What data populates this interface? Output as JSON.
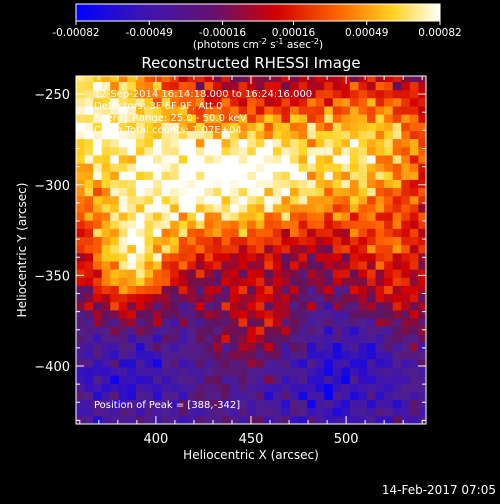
{
  "colorbar": {
    "ticks": [
      "-0.00082",
      "-0.00049",
      "-0.00016",
      "0.00016",
      "0.00049",
      "0.00082"
    ],
    "units_main": "(photons cm",
    "units_exp1": "-2",
    "units_mid": " s",
    "units_exp2": "-1",
    "units_mid2": " asec",
    "units_exp3": "-2",
    "units_end": ")"
  },
  "title": "Reconstructed RHESSI Image",
  "annotations": {
    "time_range": "12-Sep-2014 16:14:18.000 to 16:24:16.000",
    "detectors": "Detectors: 3F 6F 9F, Att 0",
    "energy": "Energy Range: 25.0 - 50.0 keV",
    "clean": "Clean    Total counts: 1.07E+04",
    "peak": "Position of Peak = [388,-342]"
  },
  "footer": {
    "date": "14-Feb-2017 07:05"
  },
  "chart_data": {
    "type": "heatmap",
    "title": "Reconstructed RHESSI Image",
    "xlabel": "Heliocentric X (arcsec)",
    "ylabel": "Heliocentric Y (arcsec)",
    "xlim": [
      358,
      542
    ],
    "ylim": [
      -432,
      -240
    ],
    "x_ticks": [
      400,
      450,
      500
    ],
    "y_ticks": [
      -250,
      -300,
      -350,
      -400
    ],
    "colorbar_range": [
      -0.00082,
      0.00082
    ],
    "colorbar_ticks": [
      -0.00082,
      -0.00049,
      -0.00016,
      0.00016,
      0.00049,
      0.00082
    ],
    "colormap": "blue-purple-red-yellow-white",
    "peak_position": [
      388,
      -342
    ],
    "energy_range_kev": [
      25.0,
      50.0
    ],
    "total_counts": 10700,
    "grid": false
  }
}
